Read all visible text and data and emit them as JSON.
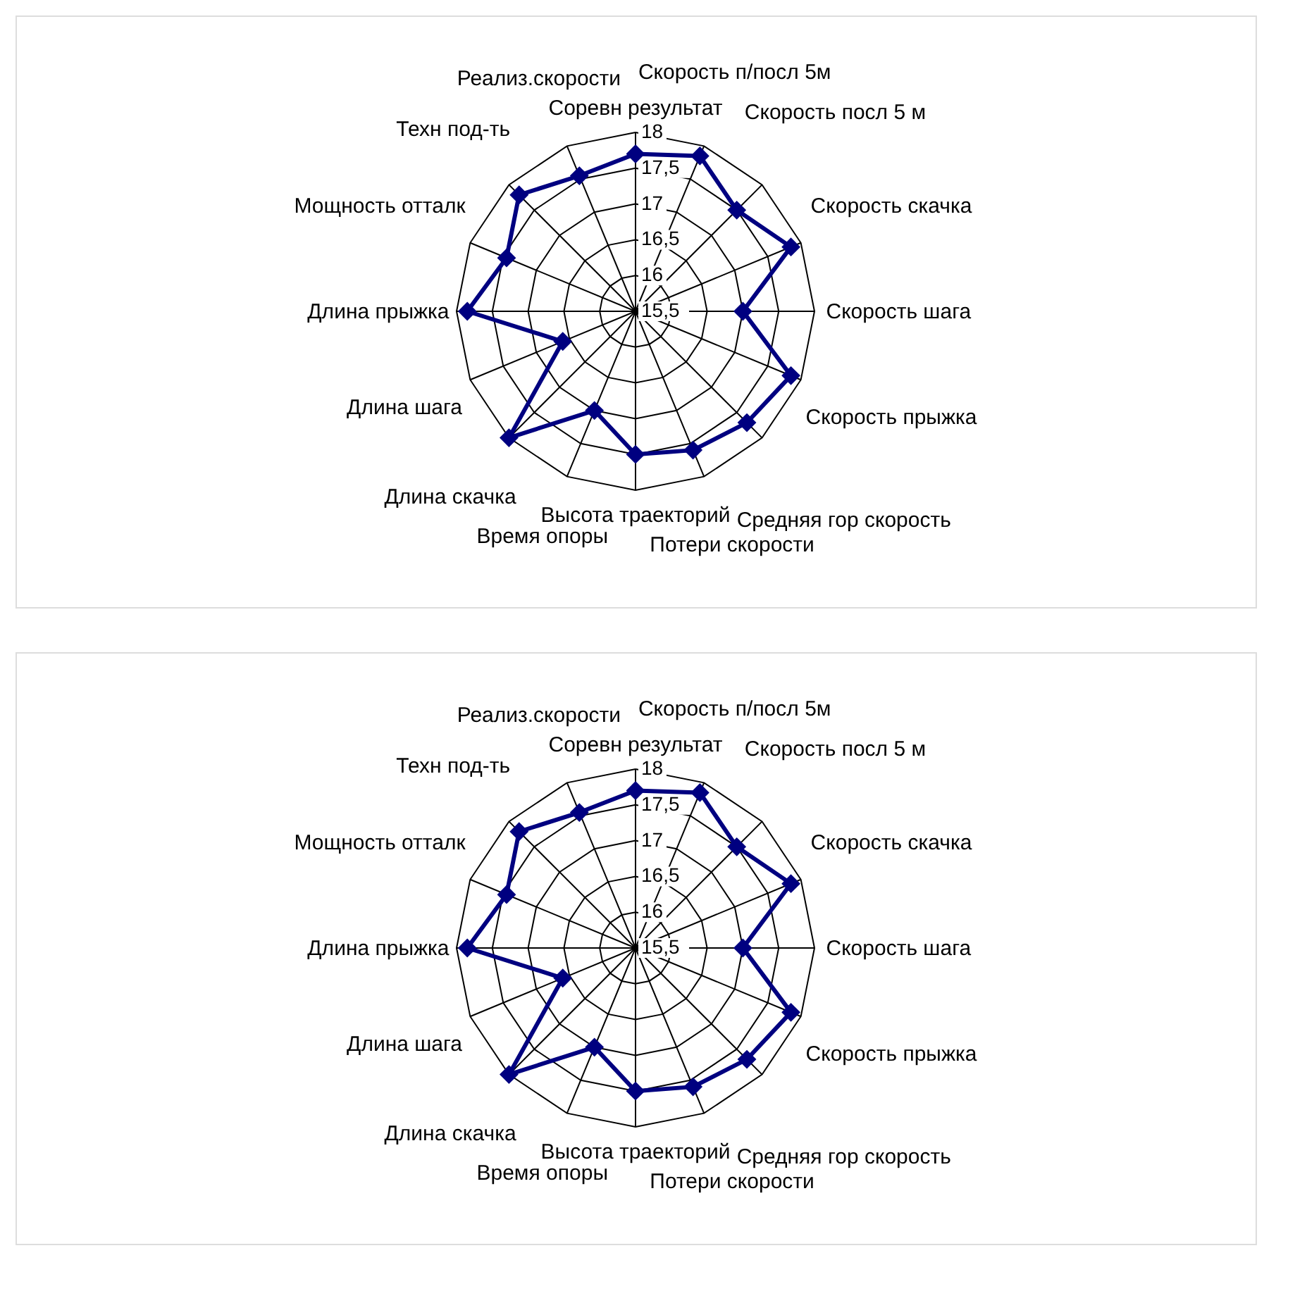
{
  "chart_data": [
    {
      "type": "radar",
      "categories": [
        "Соревн результат",
        "Скорость п/посл 5м",
        "Скорость посл 5 м",
        "Скорость скачка",
        "Скорость шага",
        "Скорость прыжка",
        "Средняя гор скорость",
        "Потери скорости",
        "Высота траекторий",
        "Время опоры",
        "Длина скачка",
        "Длина шага",
        "Длина прыжка",
        "Мощность отталк",
        "Техн под-ть",
        "Реализ.скорости"
      ],
      "series": [
        {
          "color": "#000080",
          "values": [
            17.7,
            17.85,
            17.5,
            17.85,
            17.0,
            17.85,
            17.7,
            17.6,
            17.5,
            17.0,
            18.0,
            16.6,
            17.85,
            17.45,
            17.8,
            17.55
          ]
        }
      ],
      "ylim": [
        15.5,
        18
      ],
      "yticks": [
        {
          "value": 15.5,
          "label": "15,5"
        },
        16,
        {
          "value": 16.5,
          "label": "16,5"
        },
        17,
        {
          "value": 17.5,
          "label": "17,5"
        },
        18
      ],
      "grid": true,
      "marker": "diamond",
      "line_style": "solid"
    },
    {
      "type": "radar",
      "categories": [
        "Соревн результат",
        "Скорость п/посл 5м",
        "Скорость посл 5 м",
        "Скорость скачка",
        "Скорость шага",
        "Скорость прыжка",
        "Средняя гор скорость",
        "Потери скорости",
        "Высота траекторий",
        "Время опоры",
        "Длина скачка",
        "Длина шага",
        "Длина прыжка",
        "Мощность отталк",
        "Техн под-ть",
        "Реализ.скорости"
      ],
      "series": [
        {
          "color": "#000080",
          "values": [
            17.7,
            17.85,
            17.5,
            17.85,
            17.0,
            17.85,
            17.7,
            17.6,
            17.5,
            17.0,
            18.0,
            16.6,
            17.85,
            17.45,
            17.8,
            17.55
          ]
        }
      ],
      "ylim": [
        15.5,
        18
      ],
      "yticks": [
        {
          "value": 15.5,
          "label": "15,5"
        },
        16,
        {
          "value": 16.5,
          "label": "16,5"
        },
        17,
        {
          "value": 17.5,
          "label": "17,5"
        },
        18
      ],
      "grid": true,
      "marker": "diamond",
      "line_style": "solid"
    }
  ]
}
